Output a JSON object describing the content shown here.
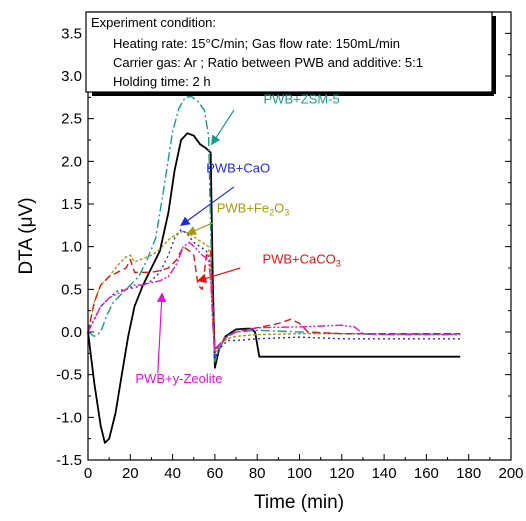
{
  "chart_data": {
    "type": "line",
    "xlabel": "Time (min)",
    "ylabel": "DTA (μV)",
    "xlim": [
      0,
      200
    ],
    "ylim": [
      -1.5,
      3.75
    ],
    "xticks": [
      0,
      20,
      40,
      60,
      80,
      100,
      120,
      140,
      160,
      180,
      200
    ],
    "yticks": [
      -1.5,
      -1.0,
      -0.5,
      0.0,
      0.5,
      1.0,
      1.5,
      2.0,
      2.5,
      3.0,
      3.5
    ],
    "xtick_labels": [
      "0",
      "20",
      "40",
      "60",
      "80",
      "100",
      "120",
      "140",
      "160",
      "180",
      "200"
    ],
    "ytick_labels": [
      "-1.5",
      "-1.0",
      "-0.5",
      "0.0",
      "0.5",
      "1.0",
      "1.5",
      "2.0",
      "2.5",
      "3.0",
      "3.5"
    ],
    "grid": false,
    "conditions_box": {
      "line1": "Experiment condition:",
      "line2": "Heating rate: 15°C/min;   Gas flow rate:  150mL/min",
      "line3": "Carrier gas:   Ar ;  Ratio between PWB and additive: 5:1",
      "line4": "Holding time: 2 h"
    },
    "series": [
      {
        "name": "PWB",
        "color": "#000000",
        "dash": "solid",
        "x": [
          0,
          3,
          6,
          8,
          10,
          13,
          16,
          19,
          22,
          26,
          30,
          34,
          38,
          41,
          44,
          47,
          50,
          53,
          56,
          58,
          59,
          60,
          62,
          65,
          70,
          75,
          77,
          79,
          81,
          90,
          100,
          120,
          140,
          160,
          176
        ],
        "y": [
          0.0,
          -0.6,
          -1.1,
          -1.3,
          -1.25,
          -0.95,
          -0.5,
          -0.05,
          0.3,
          0.55,
          0.75,
          0.95,
          1.4,
          1.9,
          2.25,
          2.33,
          2.3,
          2.2,
          2.15,
          2.1,
          0.6,
          -0.42,
          -0.2,
          -0.05,
          0.03,
          0.04,
          0.04,
          0.0,
          -0.29,
          -0.29,
          -0.29,
          -0.29,
          -0.29,
          -0.29,
          -0.29
        ]
      },
      {
        "name": "PWB+ZSM-5",
        "color": "#1a9a8e",
        "dash": "9 3 2 3",
        "x": [
          0,
          3,
          6,
          9,
          12,
          16,
          20,
          24,
          28,
          32,
          36,
          40,
          43,
          46,
          49,
          52,
          55,
          57,
          58,
          59,
          60,
          62,
          65,
          70,
          80,
          100,
          120,
          140,
          160,
          176
        ],
        "y": [
          0.0,
          -0.05,
          0.0,
          0.2,
          0.35,
          0.45,
          0.55,
          0.65,
          0.85,
          1.1,
          1.7,
          2.35,
          2.62,
          2.75,
          2.76,
          2.7,
          2.6,
          2.3,
          1.2,
          0.1,
          -0.35,
          -0.2,
          -0.05,
          0.0,
          0.02,
          0.0,
          -0.02,
          -0.03,
          -0.03,
          -0.03
        ]
      },
      {
        "name": "PWB+CaO",
        "color": "#1f2bd4",
        "dash": "2 3",
        "x": [
          0,
          3,
          6,
          10,
          14,
          18,
          22,
          26,
          30,
          34,
          38,
          41,
          44,
          47,
          50,
          53,
          56,
          58,
          59,
          60,
          62,
          66,
          70,
          80,
          100,
          120,
          140,
          160,
          176
        ],
        "y": [
          0.0,
          0.15,
          0.3,
          0.4,
          0.48,
          0.5,
          0.52,
          0.55,
          0.6,
          0.7,
          0.9,
          1.1,
          1.2,
          1.15,
          1.05,
          1.0,
          0.95,
          0.8,
          0.2,
          -0.3,
          -0.2,
          -0.1,
          -0.1,
          -0.08,
          -0.06,
          -0.08,
          -0.08,
          -0.08,
          -0.08
        ]
      },
      {
        "name": "PWB+Fe2O3",
        "color": "#a59a12",
        "dash": "3 2",
        "x": [
          0,
          3,
          6,
          10,
          14,
          18,
          20,
          22,
          26,
          30,
          34,
          38,
          42,
          45,
          48,
          51,
          54,
          57,
          58,
          59,
          60,
          62,
          66,
          70,
          80,
          100,
          120,
          140,
          160,
          176
        ],
        "y": [
          0.0,
          0.35,
          0.55,
          0.65,
          0.78,
          0.88,
          0.9,
          0.82,
          0.86,
          0.9,
          0.97,
          1.08,
          1.15,
          1.18,
          1.15,
          1.1,
          1.05,
          1.0,
          0.7,
          0.1,
          -0.25,
          -0.15,
          -0.08,
          -0.05,
          -0.03,
          -0.02,
          -0.02,
          -0.02,
          -0.02,
          -0.02
        ]
      },
      {
        "name": "PWB+CaCO3",
        "color": "#e01515",
        "dash": "7 4",
        "x": [
          0,
          3,
          6,
          10,
          14,
          18,
          20,
          22,
          26,
          30,
          34,
          38,
          42,
          45,
          48,
          50,
          52,
          54,
          56,
          58,
          59,
          60,
          62,
          66,
          70,
          80,
          90,
          96,
          100,
          104,
          120,
          140,
          160,
          176
        ],
        "y": [
          0.0,
          0.35,
          0.55,
          0.65,
          0.7,
          0.75,
          0.85,
          0.7,
          0.7,
          0.7,
          0.72,
          0.75,
          0.85,
          1.0,
          0.95,
          0.9,
          0.55,
          0.5,
          0.9,
          0.95,
          0.4,
          -0.2,
          -0.15,
          -0.05,
          0.0,
          0.05,
          0.1,
          0.15,
          0.1,
          0.0,
          -0.02,
          -0.02,
          -0.02,
          -0.02
        ]
      },
      {
        "name": "PWB+y-Zeolite",
        "color": "#e513d6",
        "dash": "8 2 2 2 2 2",
        "x": [
          0,
          3,
          6,
          10,
          14,
          18,
          22,
          26,
          30,
          34,
          38,
          42,
          45,
          48,
          51,
          54,
          57,
          58,
          59,
          60,
          62,
          66,
          70,
          80,
          100,
          120,
          126,
          130,
          140,
          160,
          176
        ],
        "y": [
          0.0,
          0.15,
          0.3,
          0.4,
          0.45,
          0.5,
          0.55,
          0.55,
          0.58,
          0.6,
          0.65,
          0.8,
          1.0,
          1.05,
          0.98,
          0.9,
          0.85,
          0.6,
          0.1,
          -0.25,
          -0.15,
          -0.05,
          0.0,
          0.05,
          0.06,
          0.08,
          0.06,
          -0.02,
          -0.03,
          -0.03,
          -0.03
        ]
      }
    ],
    "annotations": [
      {
        "id": "zsm",
        "label": "PWB+ZSM-5",
        "color": "#1a9a8e",
        "text_at": [
          101,
          2.68
        ],
        "arrow_from": [
          69,
          2.6
        ],
        "arrow_to": [
          58.5,
          2.2
        ]
      },
      {
        "id": "cao",
        "label": "PWB+CaO",
        "color": "#1f2bd4",
        "text_at": [
          71,
          1.87
        ],
        "arrow_from": [
          69,
          1.7
        ],
        "arrow_to": [
          44,
          1.25
        ]
      },
      {
        "id": "fe",
        "label": "PWB+Fe",
        "sub": "2",
        "label_tail": "O",
        "sub2": "3",
        "color": "#a59a12",
        "text_at": [
          78,
          1.4
        ],
        "arrow_from": [
          59,
          1.28
        ],
        "arrow_to": [
          47,
          1.15
        ]
      },
      {
        "id": "caco",
        "label": "PWB+CaCO",
        "sub": "3",
        "color": "#e01515",
        "text_at": [
          101,
          0.8
        ],
        "arrow_from": [
          72,
          0.75
        ],
        "arrow_to": [
          52,
          0.6
        ]
      },
      {
        "id": "zeol",
        "label": "PWB+y-Zeolite",
        "color": "#e513d6",
        "text_at": [
          43,
          -0.6
        ],
        "arrow_from": [
          33,
          -0.48
        ],
        "arrow_to": [
          35,
          0.45
        ]
      }
    ]
  }
}
